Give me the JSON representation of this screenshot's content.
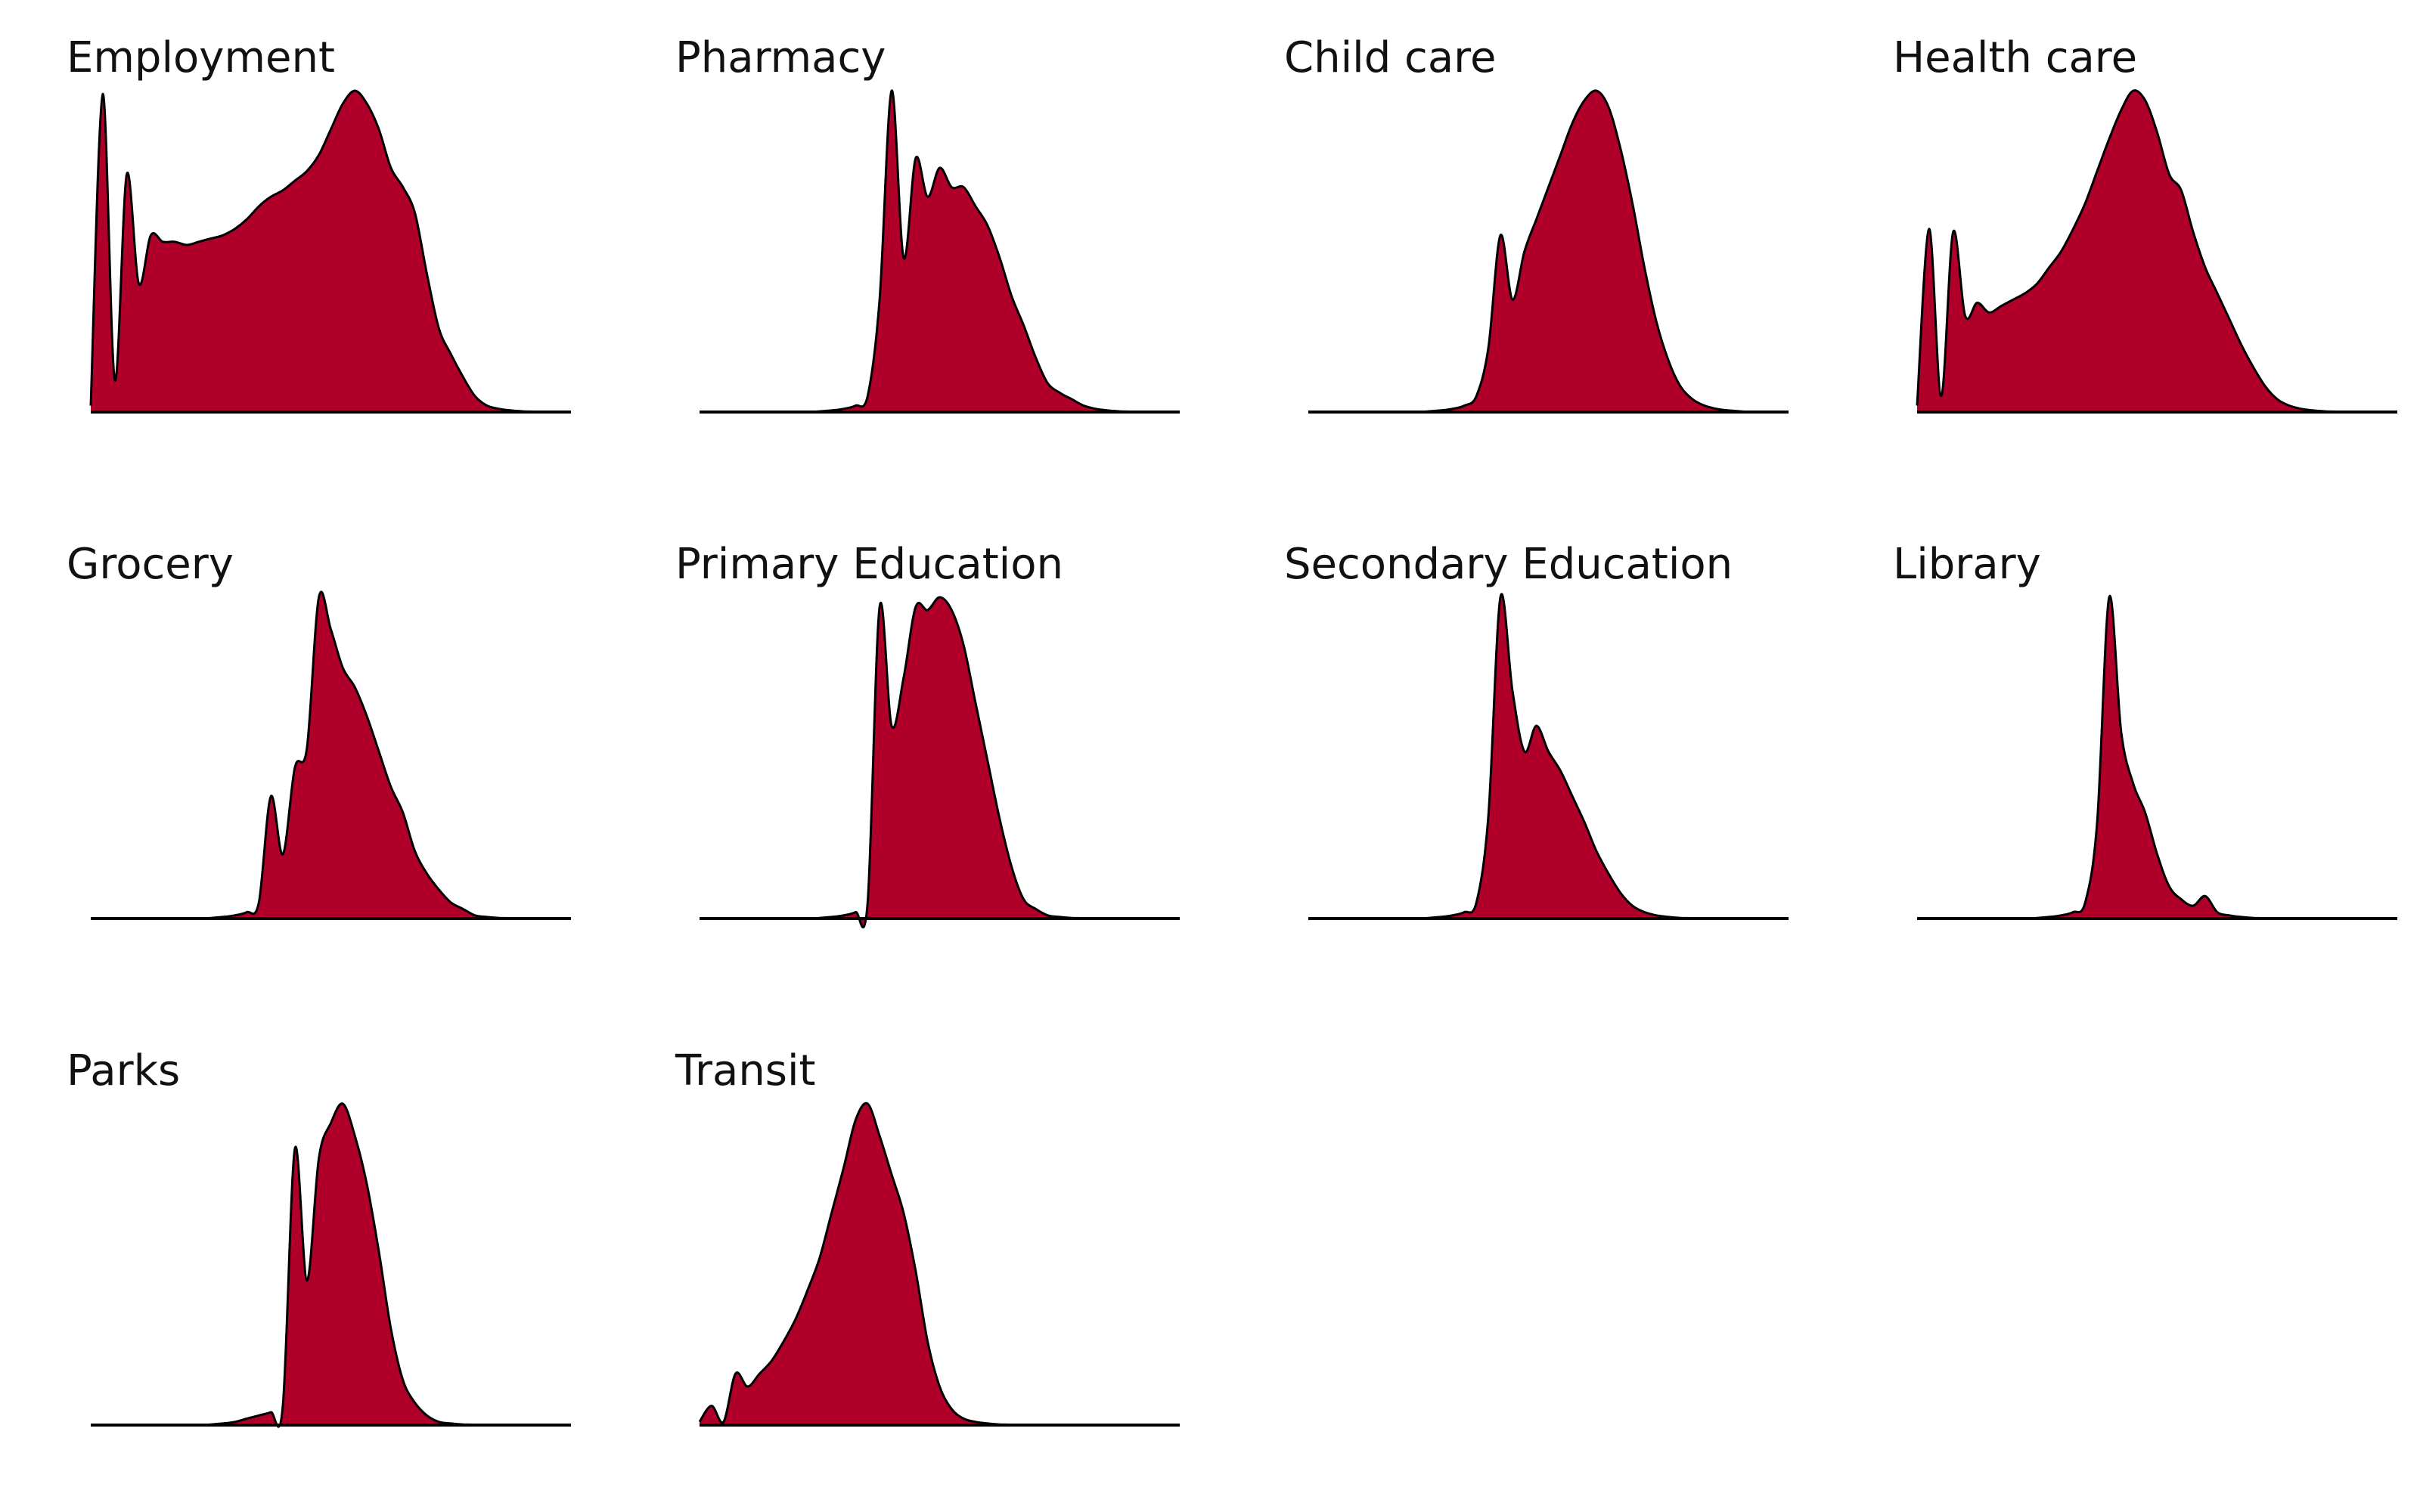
{
  "chart_data": {
    "type": "area",
    "layout": {
      "rows": 3,
      "columns": 4
    },
    "fill_color": "#b0002a",
    "line_color": "#000000",
    "grid": false,
    "axes_visible": false,
    "x": [
      0,
      0.025,
      0.05,
      0.075,
      0.1,
      0.125,
      0.15,
      0.175,
      0.2,
      0.225,
      0.25,
      0.275,
      0.3,
      0.325,
      0.35,
      0.375,
      0.4,
      0.425,
      0.45,
      0.475,
      0.5,
      0.525,
      0.55,
      0.575,
      0.6,
      0.625,
      0.65,
      0.675,
      0.7,
      0.725,
      0.75,
      0.775,
      0.8,
      0.825,
      0.85,
      0.875,
      0.9,
      0.925,
      0.95,
      0.975,
      1.0
    ],
    "panels": [
      {
        "title": "Employment",
        "y": [
          0.02,
          0.99,
          0.1,
          0.74,
          0.4,
          0.55,
          0.53,
          0.53,
          0.52,
          0.53,
          0.54,
          0.55,
          0.57,
          0.6,
          0.64,
          0.67,
          0.69,
          0.72,
          0.75,
          0.8,
          0.88,
          0.96,
          1.0,
          0.96,
          0.88,
          0.76,
          0.7,
          0.62,
          0.43,
          0.26,
          0.18,
          0.11,
          0.05,
          0.02,
          0.01,
          0.005,
          0.002,
          0.001,
          0.0,
          0.0,
          0.0
        ]
      },
      {
        "title": "Pharmacy",
        "y": [
          0,
          0,
          0,
          0,
          0,
          0,
          0,
          0,
          0,
          0,
          0.002,
          0.005,
          0.01,
          0.02,
          0.05,
          0.35,
          1.0,
          0.48,
          0.79,
          0.67,
          0.76,
          0.7,
          0.7,
          0.64,
          0.58,
          0.48,
          0.36,
          0.27,
          0.17,
          0.09,
          0.06,
          0.04,
          0.02,
          0.01,
          0.005,
          0.002,
          0.001,
          0,
          0,
          0,
          0
        ]
      },
      {
        "title": "Child care",
        "y": [
          0,
          0,
          0,
          0,
          0,
          0,
          0,
          0,
          0,
          0,
          0.002,
          0.005,
          0.01,
          0.02,
          0.05,
          0.2,
          0.55,
          0.35,
          0.5,
          0.6,
          0.7,
          0.8,
          0.9,
          0.97,
          1.0,
          0.95,
          0.82,
          0.65,
          0.45,
          0.28,
          0.16,
          0.08,
          0.04,
          0.02,
          0.01,
          0.005,
          0.002,
          0,
          0,
          0,
          0
        ]
      },
      {
        "title": "Health care",
        "y": [
          0.02,
          0.57,
          0.05,
          0.56,
          0.3,
          0.34,
          0.31,
          0.33,
          0.35,
          0.37,
          0.4,
          0.45,
          0.5,
          0.57,
          0.65,
          0.75,
          0.85,
          0.94,
          1.0,
          0.97,
          0.87,
          0.74,
          0.69,
          0.56,
          0.45,
          0.37,
          0.29,
          0.21,
          0.14,
          0.08,
          0.04,
          0.02,
          0.01,
          0.005,
          0.002,
          0.001,
          0,
          0,
          0,
          0,
          0
        ]
      },
      {
        "title": "Grocery",
        "y": [
          0,
          0,
          0,
          0,
          0,
          0,
          0,
          0,
          0,
          0,
          0.002,
          0.005,
          0.01,
          0.02,
          0.05,
          0.38,
          0.2,
          0.47,
          0.53,
          1.0,
          0.9,
          0.78,
          0.72,
          0.63,
          0.52,
          0.41,
          0.33,
          0.21,
          0.14,
          0.09,
          0.05,
          0.03,
          0.01,
          0.005,
          0.002,
          0.001,
          0,
          0,
          0,
          0,
          0
        ]
      },
      {
        "title": "Primary Education",
        "y": [
          0,
          0,
          0,
          0,
          0,
          0,
          0,
          0,
          0,
          0,
          0.002,
          0.005,
          0.01,
          0.02,
          0.05,
          0.97,
          0.6,
          0.75,
          0.97,
          0.96,
          1.0,
          0.96,
          0.85,
          0.67,
          0.49,
          0.31,
          0.16,
          0.06,
          0.03,
          0.01,
          0.005,
          0.002,
          0.001,
          0,
          0,
          0,
          0,
          0,
          0,
          0,
          0
        ]
      },
      {
        "title": "Secondary Education",
        "y": [
          0,
          0,
          0,
          0,
          0,
          0,
          0,
          0,
          0,
          0,
          0.002,
          0.005,
          0.01,
          0.02,
          0.05,
          0.32,
          1.0,
          0.71,
          0.52,
          0.6,
          0.52,
          0.46,
          0.38,
          0.3,
          0.21,
          0.14,
          0.08,
          0.04,
          0.02,
          0.01,
          0.005,
          0.002,
          0.001,
          0,
          0,
          0,
          0,
          0,
          0,
          0,
          0
        ]
      },
      {
        "title": "Library",
        "y": [
          0,
          0,
          0,
          0,
          0,
          0,
          0,
          0,
          0,
          0,
          0.002,
          0.005,
          0.01,
          0.02,
          0.05,
          0.3,
          1.0,
          0.58,
          0.42,
          0.33,
          0.2,
          0.1,
          0.06,
          0.04,
          0.07,
          0.02,
          0.01,
          0.005,
          0.002,
          0.001,
          0,
          0,
          0,
          0,
          0,
          0,
          0,
          0,
          0,
          0,
          0
        ]
      },
      {
        "title": "Parks",
        "y": [
          0,
          0,
          0,
          0,
          0,
          0,
          0,
          0,
          0,
          0,
          0.002,
          0.005,
          0.01,
          0.02,
          0.03,
          0.04,
          0.06,
          0.86,
          0.45,
          0.83,
          0.94,
          1.0,
          0.9,
          0.75,
          0.54,
          0.3,
          0.14,
          0.07,
          0.03,
          0.01,
          0.005,
          0.002,
          0.001,
          0,
          0,
          0,
          0,
          0,
          0,
          0,
          0
        ]
      },
      {
        "title": "Transit",
        "y": [
          0.01,
          0.06,
          0.01,
          0.16,
          0.12,
          0.16,
          0.2,
          0.26,
          0.33,
          0.42,
          0.52,
          0.66,
          0.8,
          0.95,
          1.0,
          0.9,
          0.78,
          0.66,
          0.48,
          0.26,
          0.12,
          0.05,
          0.02,
          0.01,
          0.005,
          0.002,
          0.001,
          0,
          0,
          0,
          0,
          0,
          0,
          0,
          0,
          0,
          0,
          0,
          0,
          0,
          0
        ]
      }
    ]
  }
}
